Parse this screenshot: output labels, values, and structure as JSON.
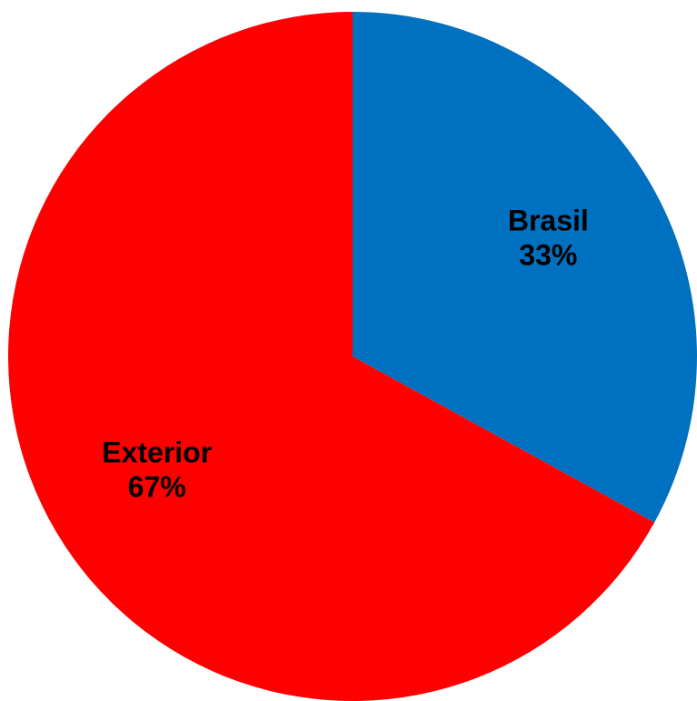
{
  "chart_data": {
    "type": "pie",
    "title": "",
    "categories": [
      "Brasil",
      "Exterior"
    ],
    "values": [
      33,
      67
    ],
    "value_labels": [
      "33%",
      "67%"
    ],
    "colors": [
      "#0070C0",
      "#FF0000"
    ],
    "start_angle": "12 o'clock",
    "direction": "clockwise",
    "legend": "none",
    "data_labels": "inside"
  }
}
